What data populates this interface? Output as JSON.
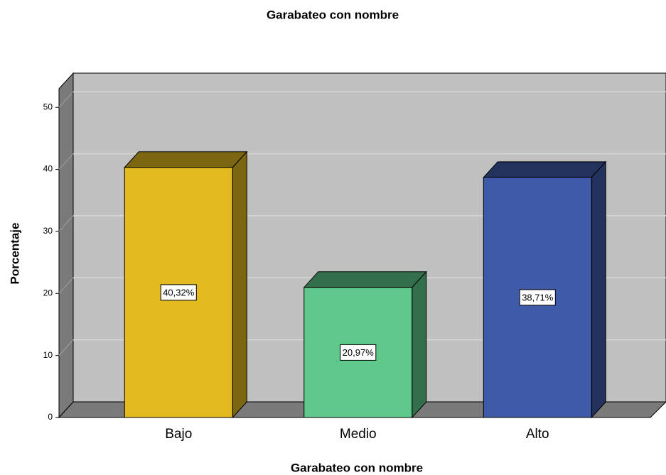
{
  "chart_data": {
    "type": "bar",
    "title": "Garabateo con nombre",
    "x_label": "Garabateo con nombre",
    "y_label": "Porcentaje",
    "categories": [
      "Bajo",
      "Medio",
      "Alto"
    ],
    "values": [
      40.32,
      20.97,
      38.71
    ],
    "value_labels": [
      "40,32%",
      "20,97%",
      "38,71%"
    ],
    "colors": [
      "#e2b91f",
      "#5ec98a",
      "#3f5aa8"
    ],
    "ylim": [
      0,
      53
    ],
    "yticks": [
      0,
      10,
      20,
      30,
      40,
      50
    ],
    "grid": true
  }
}
